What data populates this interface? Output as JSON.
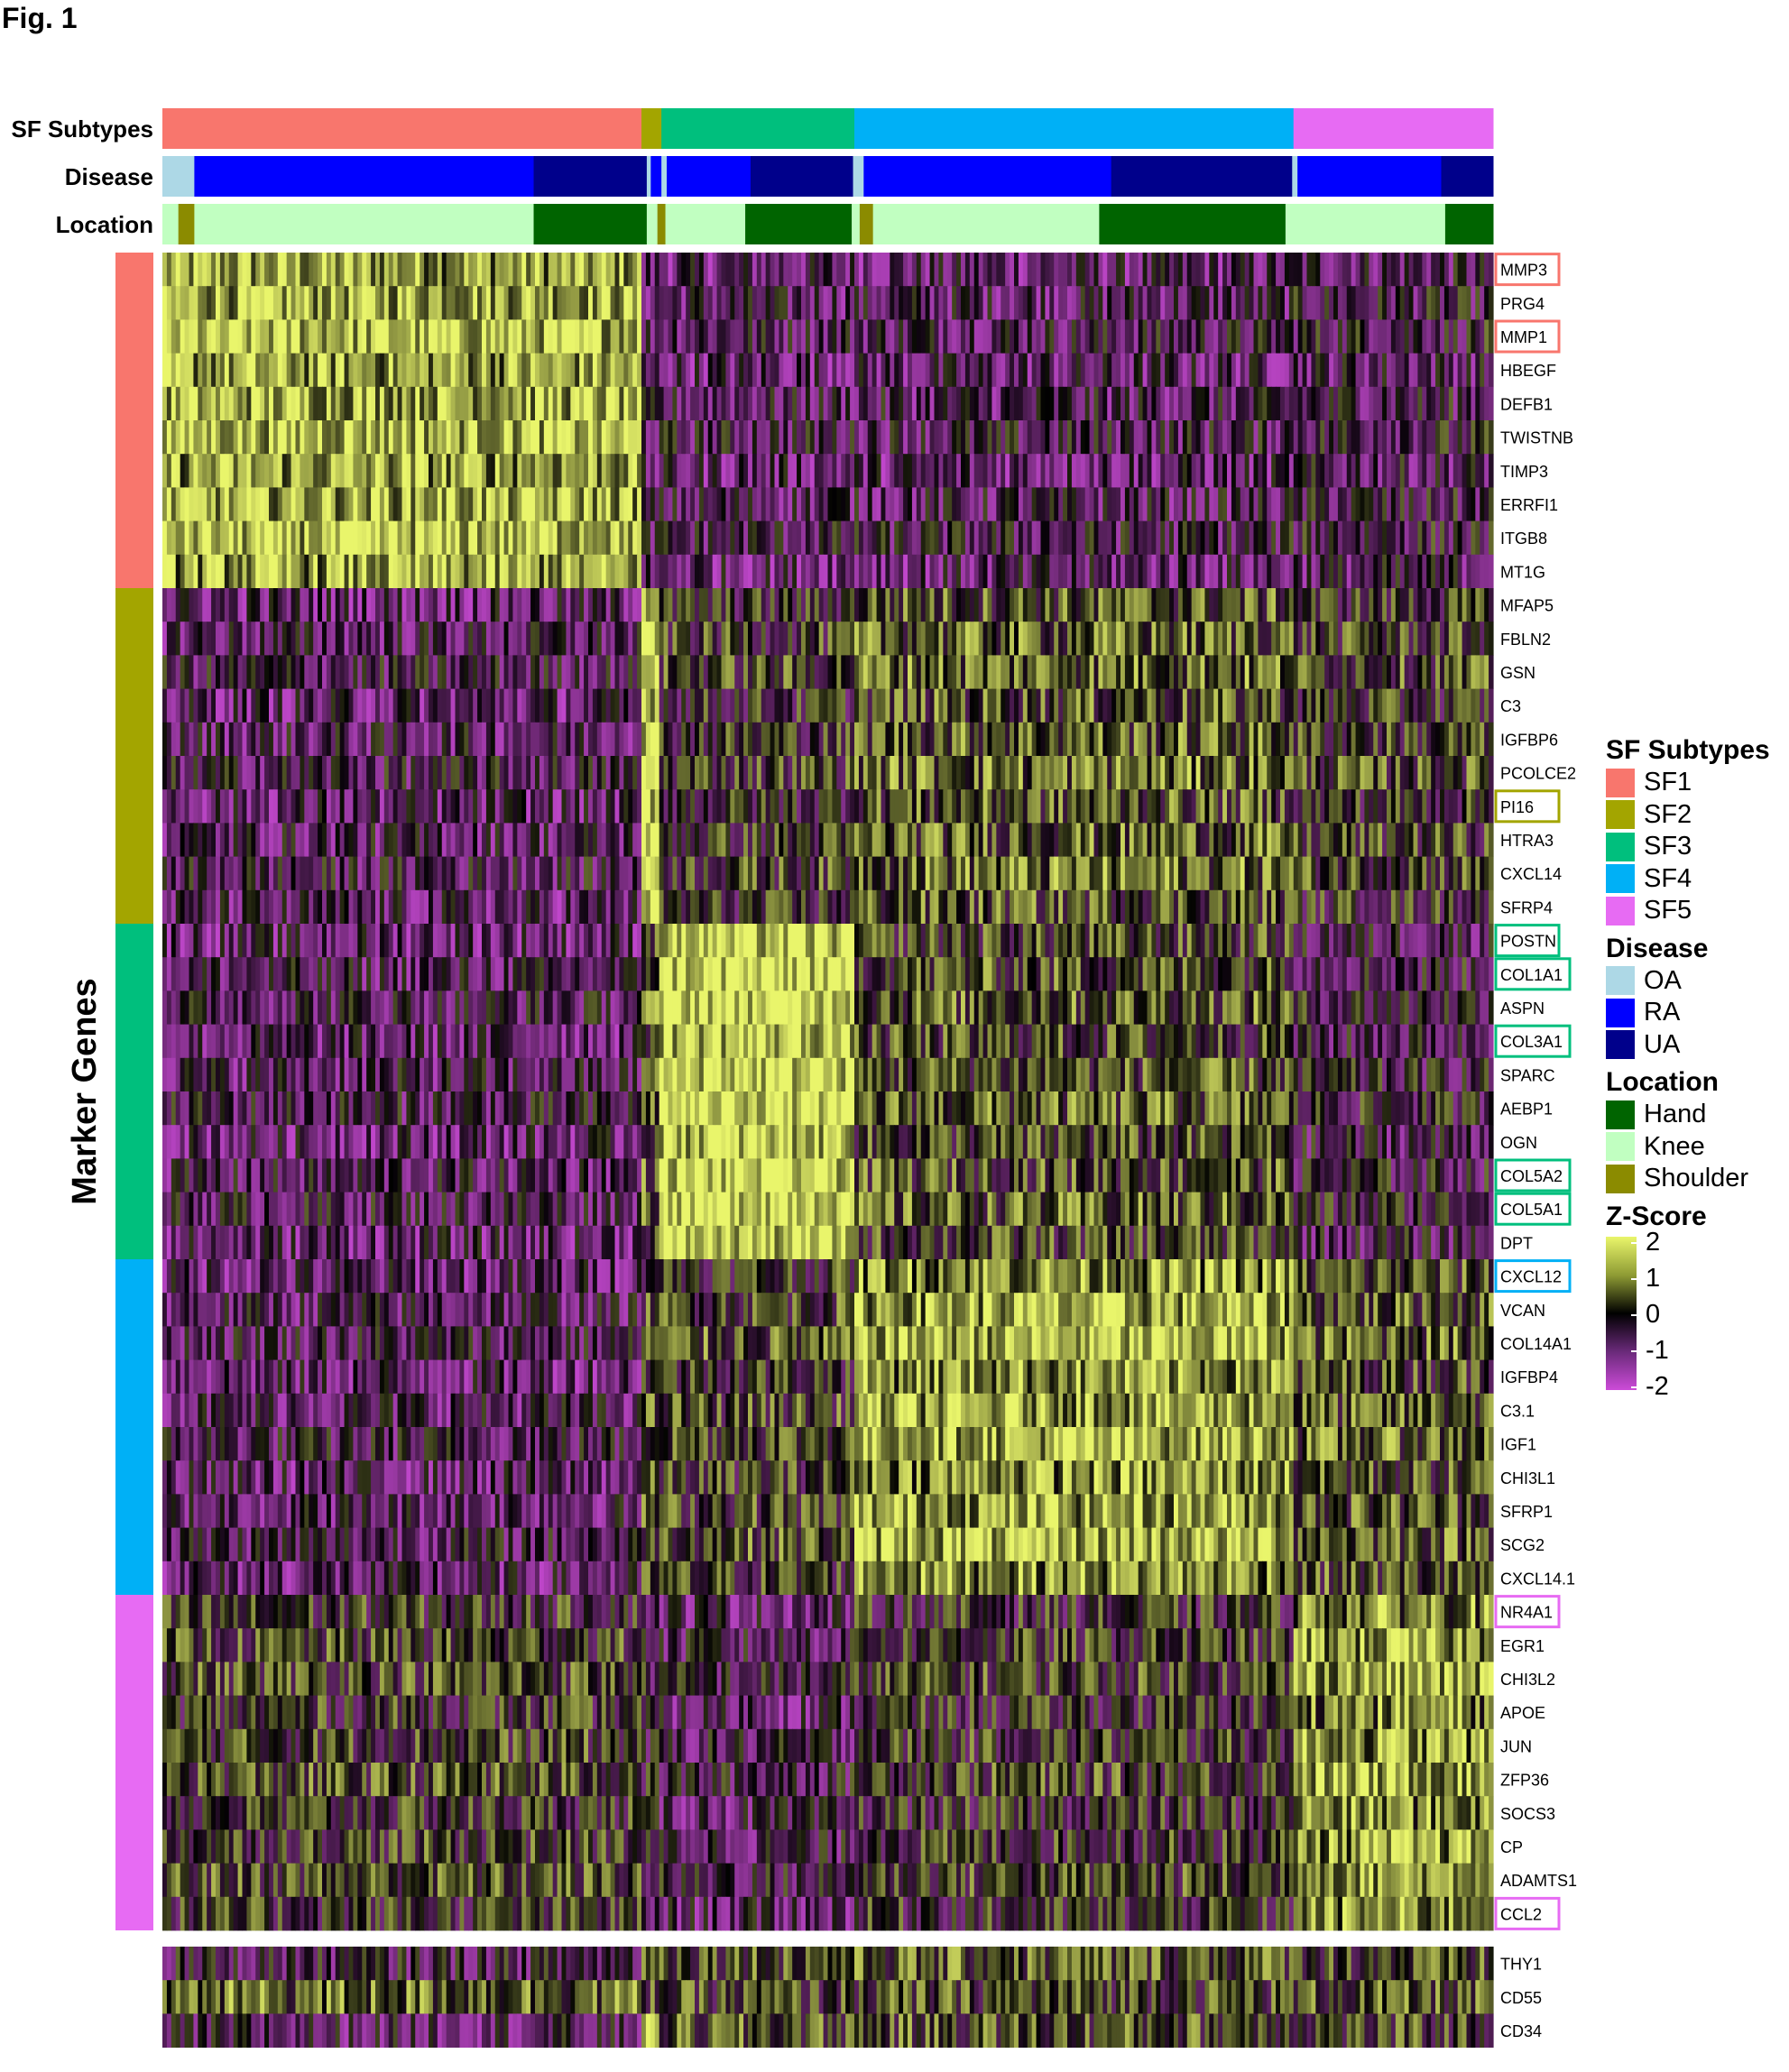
{
  "figure_label": "Fig. 1",
  "colors": {
    "SF1": "#f8766d",
    "SF2": "#a3a500",
    "SF3": "#00bf7d",
    "SF4": "#00b0f6",
    "SF5": "#e76bf3",
    "OA": "#add8e6",
    "RA": "#0000ff",
    "UA": "#00008b",
    "Hand": "#006400",
    "Knee": "#c1ffc1",
    "Shoulder": "#8b8b00",
    "zscore_high": "#e9f56b",
    "zscore_mid": "#000000",
    "zscore_low": "#cc4bd8"
  },
  "chart_data": {
    "type": "heatmap",
    "title": "",
    "ylabel": "Marker Genes",
    "annotation_tracks": [
      "SF Subtypes",
      "Disease",
      "Location"
    ],
    "subtypes": [
      "SF1",
      "SF2",
      "SF3",
      "SF4",
      "SF5"
    ],
    "cell_fraction_per_subtype": [
      0.36,
      0.015,
      0.145,
      0.33,
      0.15
    ],
    "disease_segments": [
      {
        "label": "OA",
        "fraction": 0.024
      },
      {
        "label": "RA",
        "fraction": 0.255
      },
      {
        "label": "UA",
        "fraction": 0.085
      },
      {
        "label": "OA",
        "fraction": 0.003
      },
      {
        "label": "RA",
        "fraction": 0.008
      },
      {
        "label": "OA",
        "fraction": 0.004
      },
      {
        "label": "RA",
        "fraction": 0.063
      },
      {
        "label": "UA",
        "fraction": 0.077
      },
      {
        "label": "OA",
        "fraction": 0.008
      },
      {
        "label": "RA",
        "fraction": 0.186
      },
      {
        "label": "UA",
        "fraction": 0.136
      },
      {
        "label": "OA",
        "fraction": 0.004
      },
      {
        "label": "RA",
        "fraction": 0.108
      },
      {
        "label": "UA",
        "fraction": 0.039
      }
    ],
    "location_segments": [
      {
        "label": "Knee",
        "fraction": 0.012
      },
      {
        "label": "Shoulder",
        "fraction": 0.012
      },
      {
        "label": "Knee",
        "fraction": 0.255
      },
      {
        "label": "Hand",
        "fraction": 0.085
      },
      {
        "label": "Knee",
        "fraction": 0.008
      },
      {
        "label": "Shoulder",
        "fraction": 0.006
      },
      {
        "label": "Knee",
        "fraction": 0.06
      },
      {
        "label": "Hand",
        "fraction": 0.08
      },
      {
        "label": "Knee",
        "fraction": 0.006
      },
      {
        "label": "Shoulder",
        "fraction": 0.01
      },
      {
        "label": "Knee",
        "fraction": 0.17
      },
      {
        "label": "Hand",
        "fraction": 0.14
      },
      {
        "label": "Knee",
        "fraction": 0.12
      },
      {
        "label": "Hand",
        "fraction": 0.036
      }
    ],
    "gene_groups": [
      {
        "subtype": "SF1",
        "genes": [
          "MMP3",
          "PRG4",
          "MMP1",
          "HBEGF",
          "DEFB1",
          "TWISTNB",
          "TIMP3",
          "ERRFI1",
          "ITGB8",
          "MT1G"
        ]
      },
      {
        "subtype": "SF2",
        "genes": [
          "MFAP5",
          "FBLN2",
          "GSN",
          "C3",
          "IGFBP6",
          "PCOLCE2",
          "PI16",
          "HTRA3",
          "CXCL14",
          "SFRP4"
        ]
      },
      {
        "subtype": "SF3",
        "genes": [
          "POSTN",
          "COL1A1",
          "ASPN",
          "COL3A1",
          "SPARC",
          "AEBP1",
          "OGN",
          "COL5A2",
          "COL5A1",
          "DPT"
        ]
      },
      {
        "subtype": "SF4",
        "genes": [
          "CXCL12",
          "VCAN",
          "COL14A1",
          "IGFBP4",
          "C3.1",
          "IGF1",
          "CHI3L1",
          "SFRP1",
          "SCG2",
          "CXCL14.1"
        ]
      },
      {
        "subtype": "SF5",
        "genes": [
          "NR4A1",
          "EGR1",
          "CHI3L2",
          "APOE",
          "JUN",
          "ZFP36",
          "SOCS3",
          "CP",
          "ADAMTS1",
          "CCL2"
        ]
      }
    ],
    "extra_genes": [
      "THY1",
      "CD55",
      "CD34"
    ],
    "highlighted_genes": [
      {
        "gene": "MMP3",
        "subtype": "SF1"
      },
      {
        "gene": "MMP1",
        "subtype": "SF1"
      },
      {
        "gene": "PI16",
        "subtype": "SF2"
      },
      {
        "gene": "POSTN",
        "subtype": "SF3"
      },
      {
        "gene": "COL1A1",
        "subtype": "SF3"
      },
      {
        "gene": "COL3A1",
        "subtype": "SF3"
      },
      {
        "gene": "COL5A2",
        "subtype": "SF3"
      },
      {
        "gene": "COL5A1",
        "subtype": "SF3"
      },
      {
        "gene": "CXCL12",
        "subtype": "SF4"
      },
      {
        "gene": "NR4A1",
        "subtype": "SF5"
      },
      {
        "gene": "CCL2",
        "subtype": "SF5"
      }
    ],
    "mean_zscore_by_group": [
      [
        1.3,
        -0.7,
        -0.6,
        -0.6,
        -0.4
      ],
      [
        -0.6,
        1.8,
        0.1,
        0.6,
        0.2
      ],
      [
        -0.6,
        0.6,
        1.7,
        0.4,
        -0.3
      ],
      [
        -0.6,
        0.4,
        0.3,
        1.2,
        0.5
      ],
      [
        0.2,
        -0.4,
        -0.5,
        0.1,
        1.1
      ]
    ],
    "mean_zscore_extra": [
      [
        -0.4,
        0.8,
        0.5,
        0.5,
        0.3
      ],
      [
        0.7,
        0.4,
        0.2,
        0.3,
        0.4
      ],
      [
        -0.6,
        1.2,
        0.4,
        0.4,
        0.2
      ]
    ],
    "zscore_range": [
      -2,
      2
    ]
  },
  "legend": {
    "subtypes_title": "SF Subtypes",
    "subtypes": [
      "SF1",
      "SF2",
      "SF3",
      "SF4",
      "SF5"
    ],
    "disease_title": "Disease",
    "disease": [
      "OA",
      "RA",
      "UA"
    ],
    "location_title": "Location",
    "location": [
      "Hand",
      "Knee",
      "Shoulder"
    ],
    "zscore_title": "Z-Score",
    "zscore_ticks": [
      "2",
      "1",
      "0",
      "-1",
      "-2"
    ]
  }
}
